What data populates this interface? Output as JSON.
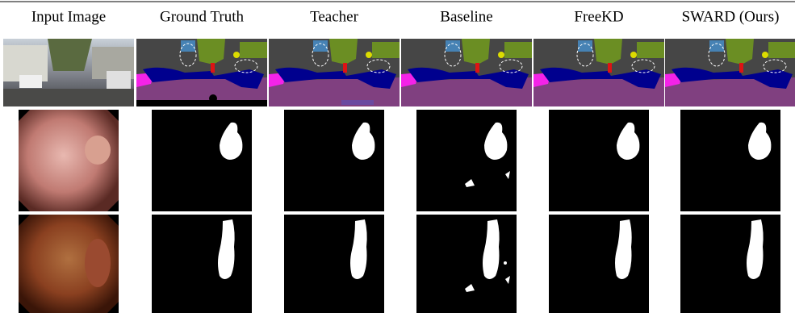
{
  "header": {
    "columns": [
      "Input Image",
      "Ground Truth",
      "Teacher",
      "Baseline",
      "FreeKD",
      "SWARD (Ours)"
    ]
  }
}
